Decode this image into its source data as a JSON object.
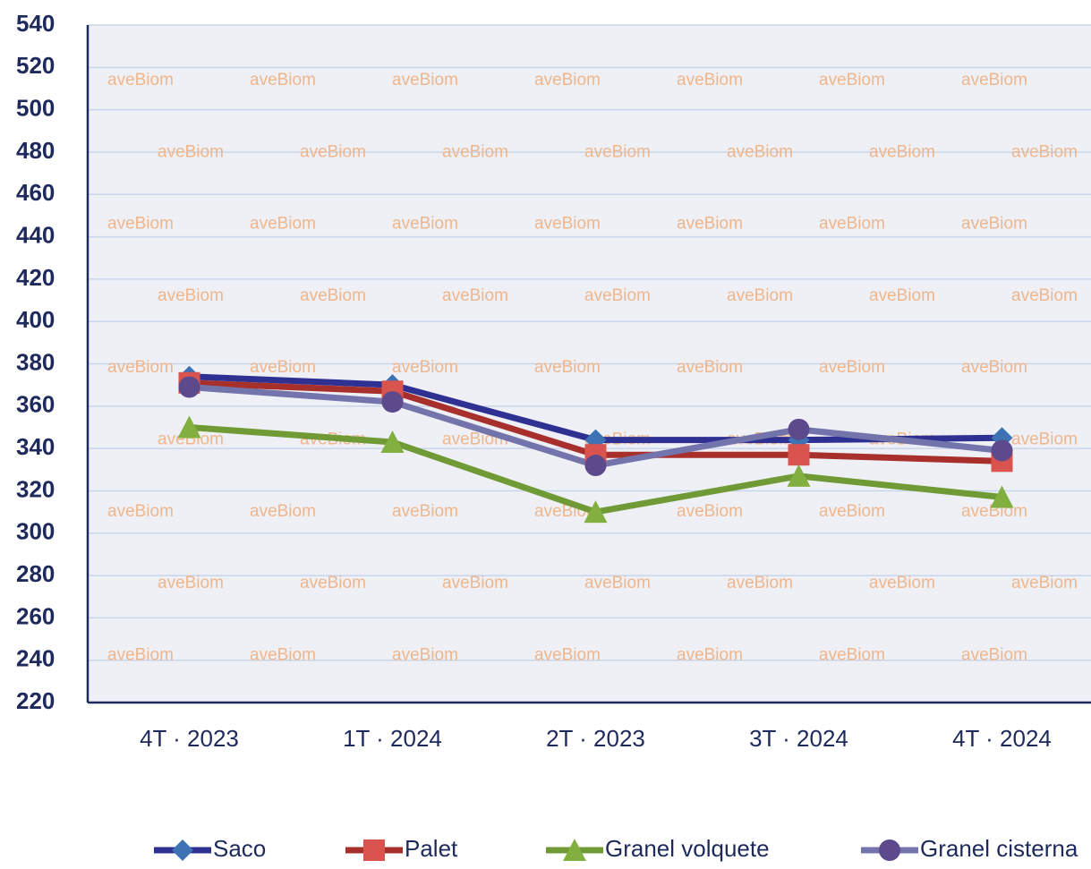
{
  "chart_data": {
    "type": "line",
    "categories": [
      "4T · 2023",
      "1T · 2024",
      "2T · 2023",
      "3T · 2024",
      "4T · 2024"
    ],
    "series": [
      {
        "name": "Saco",
        "color": "#2e3192",
        "marker_color": "#3d72b4",
        "marker": "diamond",
        "values": [
          374,
          370,
          344,
          344,
          345
        ]
      },
      {
        "name": "Palet",
        "color": "#a8302c",
        "marker_color": "#d9534f",
        "marker": "square",
        "values": [
          371,
          367,
          337,
          337,
          334
        ]
      },
      {
        "name": "Granel volquete",
        "color": "#6f9a35",
        "marker_color": "#82b040",
        "marker": "triangle",
        "values": [
          350,
          343,
          310,
          327,
          317
        ]
      },
      {
        "name": "Granel cisterna",
        "color": "#7474ac",
        "marker_color": "#5c4a8c",
        "marker": "circle",
        "values": [
          369,
          362,
          332,
          349,
          339
        ]
      }
    ],
    "ylim": [
      220,
      540
    ],
    "yticks": [
      220,
      240,
      260,
      280,
      300,
      320,
      340,
      360,
      380,
      400,
      420,
      440,
      460,
      480,
      500,
      520,
      540
    ],
    "grid": true,
    "watermark": "aveBiom",
    "legend": "bottom"
  }
}
